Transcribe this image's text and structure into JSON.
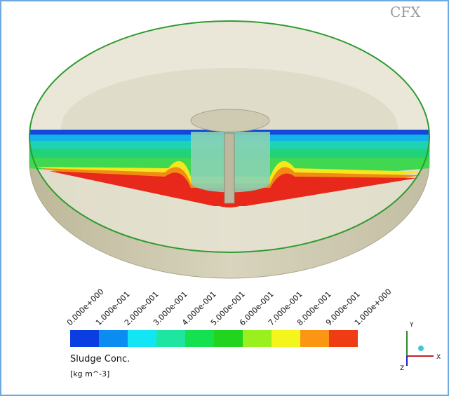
{
  "logo": "CFX",
  "legend": {
    "title": "Sludge  Conc.",
    "units": "[kg  m^-3]",
    "ticks": [
      "0.000e+000",
      "1.000e-001",
      "2.000e-001",
      "3.000e-001",
      "4.000e-001",
      "5.000e-001",
      "6.000e-001",
      "7.000e-001",
      "8.000e-001",
      "9.000e-001",
      "1.000e+000"
    ],
    "colors": [
      "#0a3ee0",
      "#0a8cf0",
      "#12e6f5",
      "#1ee6a0",
      "#14e050",
      "#22d41e",
      "#9af01e",
      "#f5f51e",
      "#fa9614",
      "#f03c14"
    ]
  },
  "axes": {
    "x": "X",
    "y": "Y",
    "z": "Z"
  }
}
